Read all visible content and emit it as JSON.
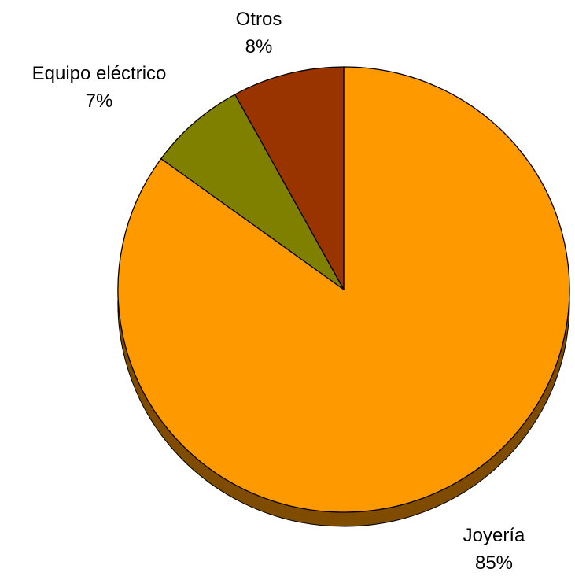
{
  "chart_data": {
    "type": "pie",
    "title": "",
    "slices": [
      {
        "label": "Joyería",
        "value": 85,
        "percent_label": "85%",
        "color": "#FF9900",
        "shadow_color": "#7F4C00"
      },
      {
        "label": "Equipo eléctrico",
        "value": 7,
        "percent_label": "7%",
        "color": "#808000",
        "shadow_color": "#404000"
      },
      {
        "label": "Otros",
        "value": 8,
        "percent_label": "8%",
        "color": "#993300",
        "shadow_color": "#4C1900"
      }
    ],
    "start_angle_deg": 0,
    "direction": "clockwise",
    "style": "3d-tilted",
    "legend": "none",
    "label_placement": "outside"
  }
}
